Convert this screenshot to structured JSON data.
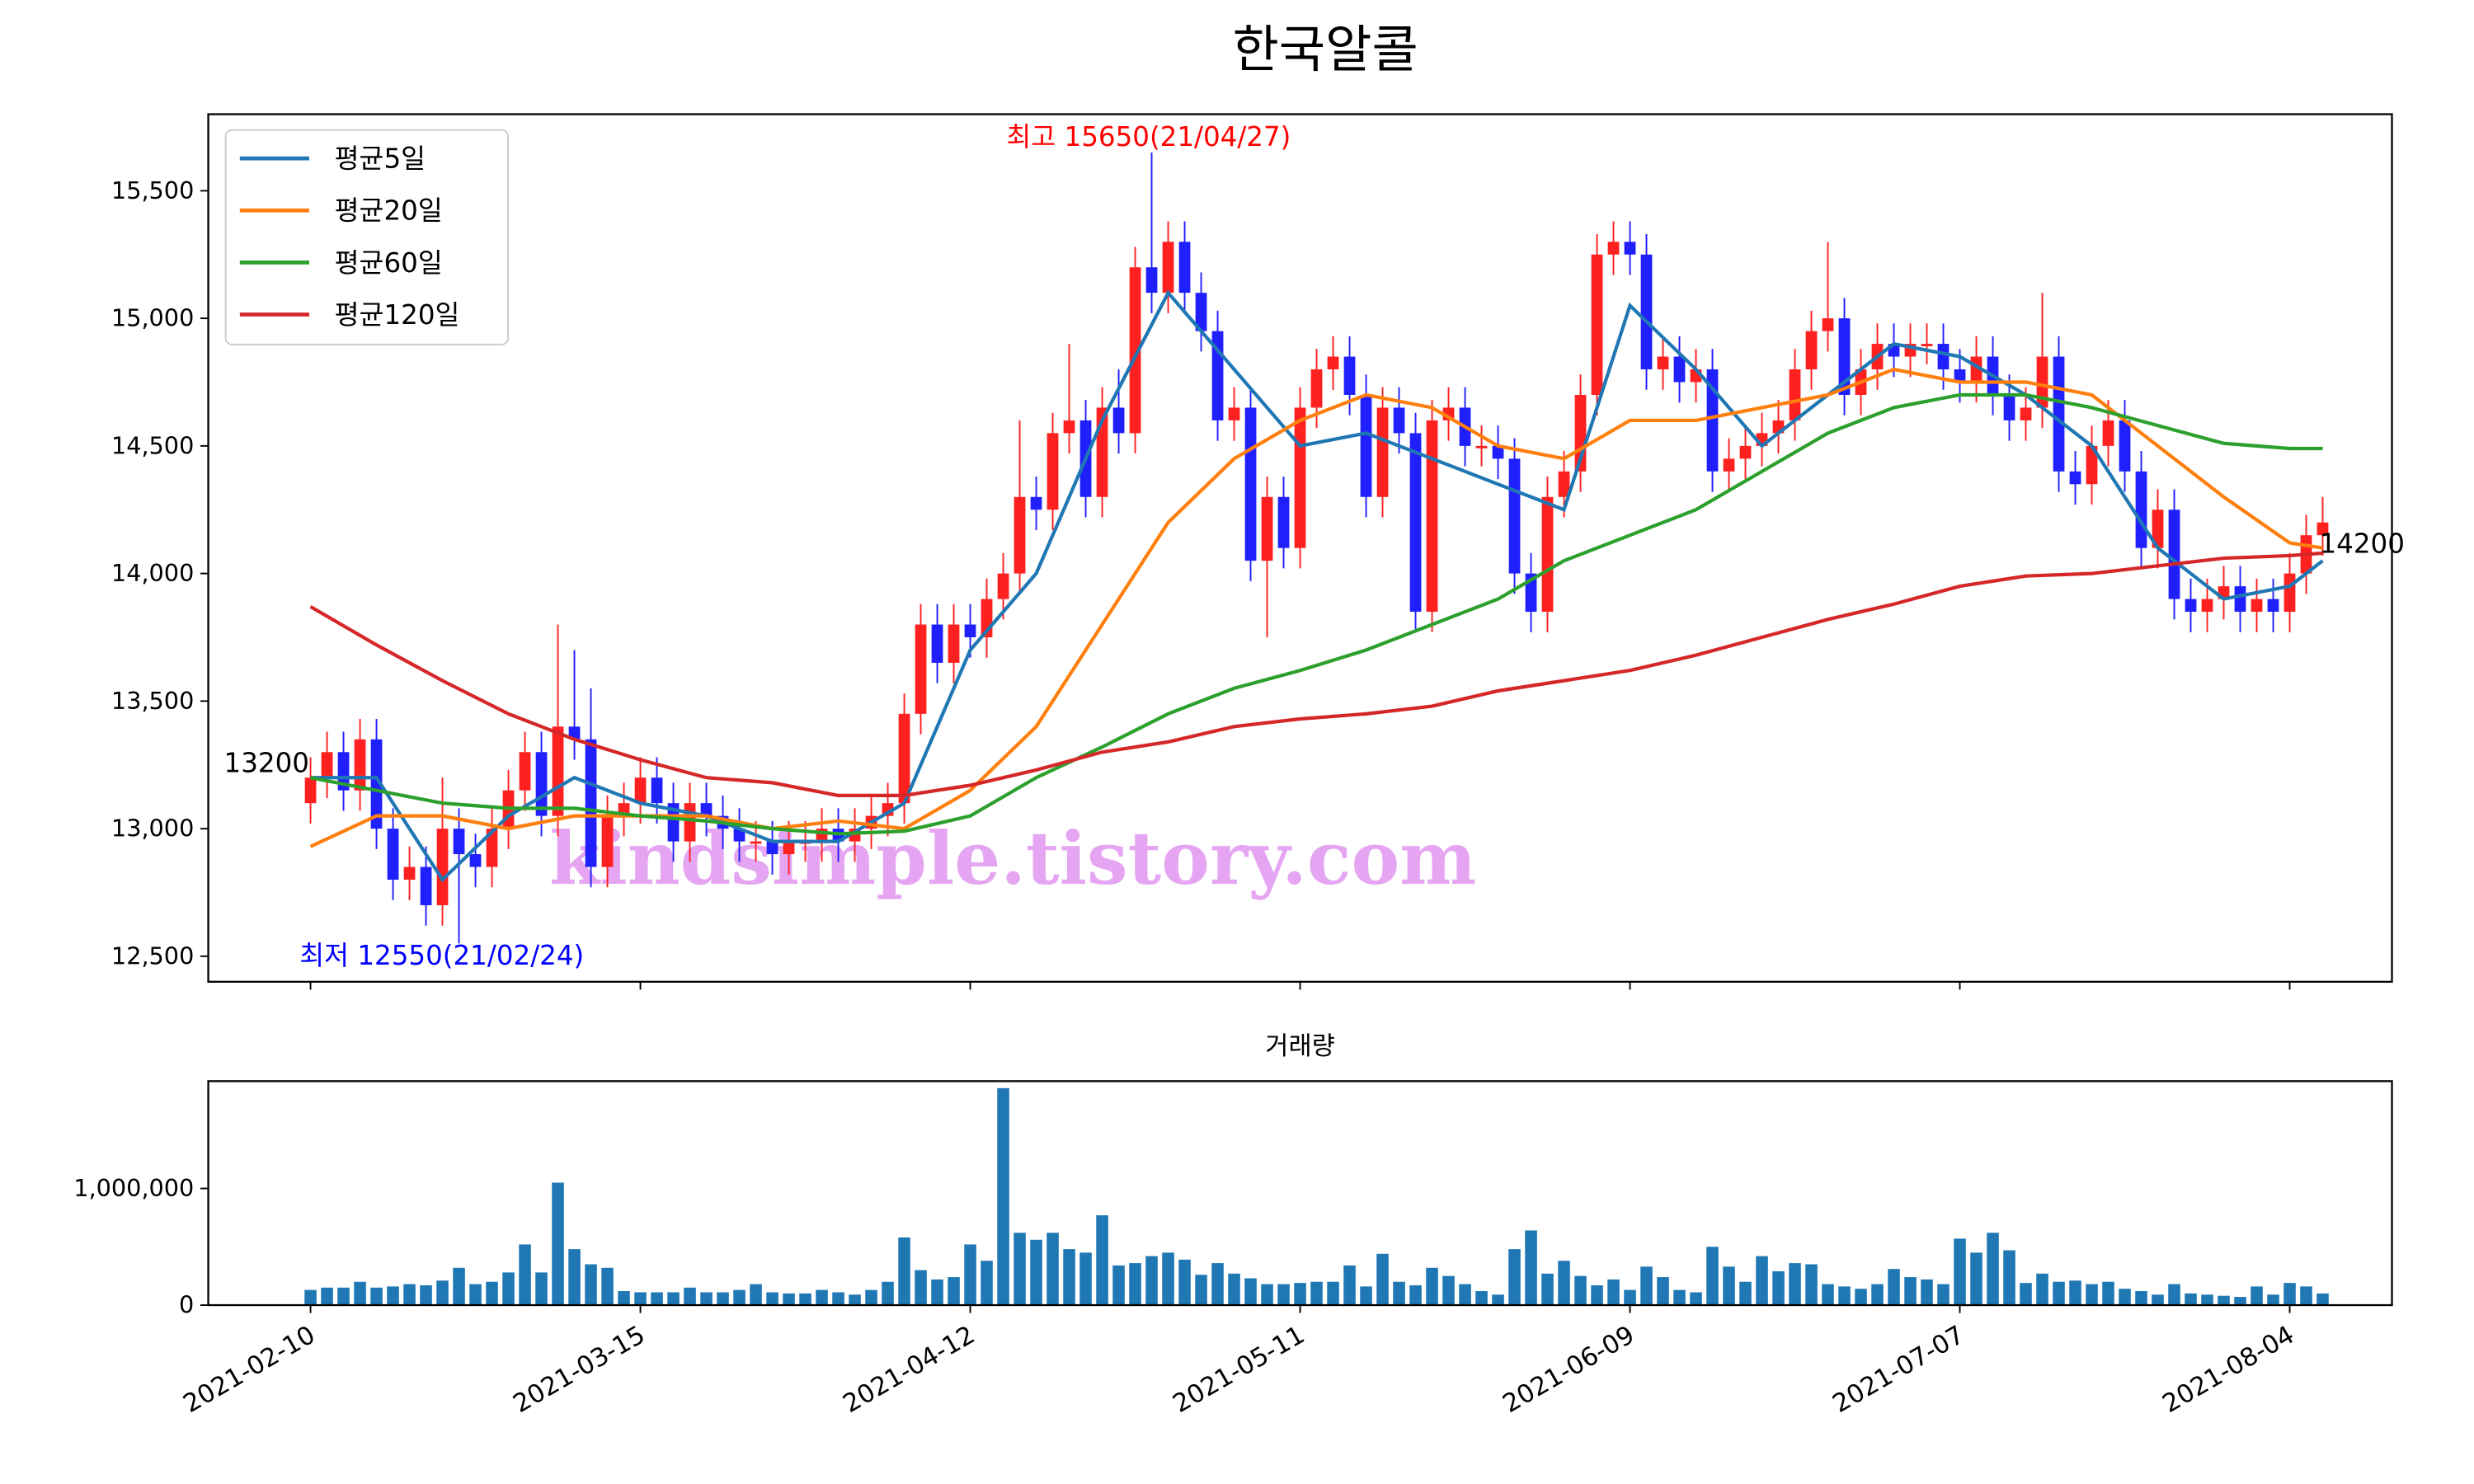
{
  "chart_data": [
    {
      "type": "candlestick",
      "title": "한국알콜",
      "xlim": [
        -6.2,
        126.2
      ],
      "ylim": [
        12400,
        15800
      ],
      "yticks": [
        {
          "value": 12500,
          "label": "12,500"
        },
        {
          "value": 13000,
          "label": "13,000"
        },
        {
          "value": 13500,
          "label": "13,500"
        },
        {
          "value": 14000,
          "label": "14,000"
        },
        {
          "value": 14500,
          "label": "14,500"
        },
        {
          "value": 15000,
          "label": "15,000"
        },
        {
          "value": 15500,
          "label": "15,500"
        }
      ],
      "up_color": "#ff2020",
      "down_color": "#2020ff",
      "legend": "upper left",
      "open": [
        13100,
        13200,
        13300,
        13150,
        13350,
        13000,
        12800,
        12850,
        12700,
        13000,
        12900,
        12850,
        13000,
        13150,
        13300,
        13050,
        13400,
        13350,
        12850,
        13050,
        13100,
        13200,
        13100,
        12950,
        13100,
        13050,
        13000,
        12950,
        12950,
        12900,
        12950,
        12950,
        13000,
        12950,
        13000,
        13050,
        13100,
        13450,
        13800,
        13650,
        13800,
        13750,
        13900,
        14000,
        14300,
        14250,
        14550,
        14600,
        14300,
        14650,
        14550,
        15200,
        15100,
        15300,
        15100,
        14950,
        14600,
        14650,
        14050,
        14300,
        14100,
        14650,
        14800,
        14850,
        14700,
        14300,
        14650,
        14550,
        13850,
        14600,
        14650,
        14500,
        14500,
        14450,
        14000,
        13850,
        14300,
        14400,
        14700,
        15250,
        15300,
        15250,
        14800,
        14850,
        14750,
        14800,
        14400,
        14450,
        14500,
        14550,
        14600,
        14800,
        14950,
        15000,
        14700,
        14800,
        14900,
        14850,
        14900,
        14900,
        14800,
        14750,
        14850,
        14700,
        14600,
        14650,
        14850,
        14400,
        14350,
        14500,
        14600,
        14400,
        14100,
        14250,
        13900,
        13850,
        13900,
        13950,
        13850,
        13900,
        13850,
        14000,
        14150
      ],
      "high": [
        13280,
        13380,
        13380,
        13430,
        13430,
        13080,
        12930,
        12930,
        13200,
        13080,
        12980,
        13080,
        13230,
        13380,
        13380,
        13800,
        13700,
        13550,
        13130,
        13180,
        13280,
        13280,
        13180,
        13180,
        13180,
        13130,
        13080,
        13030,
        13030,
        13030,
        13030,
        13080,
        13080,
        13080,
        13130,
        13180,
        13530,
        13880,
        13880,
        13880,
        13880,
        13980,
        14080,
        14600,
        14380,
        14630,
        14900,
        14680,
        14730,
        14800,
        15280,
        15650,
        15380,
        15380,
        15180,
        15030,
        14730,
        14730,
        14380,
        14380,
        14730,
        14880,
        14930,
        14930,
        14780,
        14730,
        14730,
        14630,
        14680,
        14730,
        14730,
        14580,
        14580,
        14530,
        14080,
        14380,
        14480,
        14780,
        15330,
        15380,
        15380,
        15330,
        14930,
        14930,
        14880,
        14880,
        14530,
        14580,
        14630,
        14680,
        14880,
        15030,
        15300,
        15080,
        14880,
        14980,
        14980,
        14980,
        14980,
        14980,
        14880,
        14930,
        14930,
        14780,
        14730,
        15100,
        14930,
        14480,
        14580,
        14680,
        14680,
        14480,
        14330,
        14330,
        13980,
        13980,
        14030,
        14030,
        13980,
        13980,
        14080,
        14230,
        14300
      ],
      "low": [
        13020,
        13120,
        13070,
        13070,
        12920,
        12720,
        12720,
        12620,
        12620,
        12550,
        12770,
        12770,
        12920,
        13070,
        12970,
        12970,
        13270,
        12770,
        12770,
        12970,
        13020,
        13020,
        12870,
        12870,
        12970,
        12920,
        12870,
        12870,
        12820,
        12820,
        12870,
        12870,
        12870,
        12870,
        12920,
        12970,
        13020,
        13370,
        13570,
        13570,
        13670,
        13670,
        13820,
        13920,
        14170,
        14170,
        14470,
        14220,
        14220,
        14470,
        14470,
        15020,
        15020,
        15020,
        14870,
        14520,
        14520,
        13970,
        13750,
        14020,
        14020,
        14570,
        14720,
        14620,
        14220,
        14220,
        14470,
        13770,
        13770,
        14520,
        14420,
        14420,
        14370,
        13920,
        13770,
        13770,
        14220,
        14320,
        14620,
        15170,
        15170,
        14720,
        14720,
        14670,
        14670,
        14320,
        14320,
        14370,
        14420,
        14470,
        14520,
        14720,
        14870,
        14620,
        14620,
        14720,
        14770,
        14770,
        14820,
        14720,
        14670,
        14670,
        14620,
        14520,
        14520,
        14570,
        14320,
        14270,
        14270,
        14420,
        14320,
        14020,
        14020,
        13820,
        13770,
        13770,
        13820,
        13770,
        13770,
        13770,
        13770,
        13920,
        14070
      ],
      "close": [
        13200,
        13300,
        13150,
        13350,
        13000,
        12800,
        12850,
        12700,
        13000,
        12900,
        12850,
        13000,
        13150,
        13300,
        13050,
        13400,
        13350,
        12850,
        13050,
        13100,
        13200,
        13100,
        12950,
        13100,
        13050,
        13000,
        12950,
        12950,
        12900,
        12950,
        12950,
        13000,
        12950,
        13000,
        13050,
        13100,
        13450,
        13800,
        13650,
        13800,
        13750,
        13900,
        14000,
        14300,
        14250,
        14550,
        14600,
        14300,
        14650,
        14550,
        15200,
        15100,
        15300,
        15100,
        14950,
        14600,
        14650,
        14050,
        14300,
        14100,
        14650,
        14800,
        14850,
        14700,
        14300,
        14650,
        14550,
        13850,
        14600,
        14650,
        14500,
        14500,
        14450,
        14000,
        13850,
        14300,
        14400,
        14700,
        15250,
        15300,
        15250,
        14800,
        14850,
        14750,
        14800,
        14400,
        14450,
        14500,
        14550,
        14600,
        14800,
        14950,
        15000,
        14700,
        14800,
        14900,
        14850,
        14900,
        14900,
        14800,
        14750,
        14850,
        14700,
        14600,
        14650,
        14850,
        14400,
        14350,
        14500,
        14600,
        14400,
        14100,
        14250,
        13900,
        13850,
        13900,
        13950,
        13850,
        13900,
        13850,
        14000,
        14150,
        14200
      ],
      "series": [
        {
          "name": "평균5일",
          "color": "#1f77b4",
          "x": [
            0,
            4,
            8,
            12,
            16,
            20,
            24,
            28,
            32,
            36,
            40,
            44,
            48,
            52,
            56,
            60,
            64,
            68,
            72,
            76,
            80,
            84,
            88,
            92,
            96,
            100,
            104,
            108,
            112,
            116,
            120,
            122
          ],
          "values": [
            13200,
            13200,
            12800,
            13050,
            13200,
            13100,
            13050,
            12950,
            12950,
            13100,
            13700,
            14000,
            14600,
            15100,
            14800,
            14500,
            14550,
            14450,
            14350,
            14250,
            15050,
            14800,
            14500,
            14700,
            14900,
            14850,
            14700,
            14500,
            14100,
            13900,
            13950,
            14050
          ]
        },
        {
          "name": "평균20일",
          "color": "#ff7f0e",
          "x": [
            0,
            4,
            8,
            12,
            16,
            20,
            24,
            28,
            32,
            36,
            40,
            44,
            48,
            52,
            56,
            60,
            64,
            68,
            72,
            76,
            80,
            84,
            88,
            92,
            96,
            100,
            104,
            108,
            112,
            116,
            120,
            122
          ],
          "values": [
            12930,
            13050,
            13050,
            13000,
            13050,
            13050,
            13050,
            13000,
            13030,
            13000,
            13150,
            13400,
            13800,
            14200,
            14450,
            14600,
            14700,
            14650,
            14500,
            14450,
            14600,
            14600,
            14650,
            14700,
            14800,
            14750,
            14750,
            14700,
            14500,
            14300,
            14120,
            14100
          ]
        },
        {
          "name": "평균60일",
          "color": "#2ca02c",
          "x": [
            0,
            4,
            8,
            12,
            16,
            20,
            24,
            28,
            32,
            36,
            40,
            44,
            48,
            52,
            56,
            60,
            64,
            68,
            72,
            76,
            80,
            84,
            88,
            92,
            96,
            100,
            104,
            108,
            112,
            116,
            120,
            122
          ],
          "values": [
            13200,
            13150,
            13100,
            13080,
            13080,
            13050,
            13030,
            13000,
            12980,
            12990,
            13050,
            13200,
            13320,
            13450,
            13550,
            13620,
            13700,
            13800,
            13900,
            14050,
            14150,
            14250,
            14400,
            14550,
            14650,
            14700,
            14700,
            14650,
            14580,
            14510,
            14490,
            14490
          ]
        },
        {
          "name": "평균120일",
          "color": "#d62728",
          "x": [
            0,
            4,
            8,
            12,
            16,
            20,
            24,
            28,
            32,
            36,
            40,
            44,
            48,
            52,
            56,
            60,
            64,
            68,
            72,
            76,
            80,
            84,
            88,
            92,
            96,
            100,
            104,
            108,
            112,
            116,
            120,
            122
          ],
          "values": [
            13870,
            13720,
            13580,
            13450,
            13350,
            13270,
            13200,
            13180,
            13130,
            13130,
            13170,
            13230,
            13300,
            13340,
            13400,
            13430,
            13450,
            13480,
            13540,
            13580,
            13620,
            13680,
            13750,
            13820,
            13880,
            13950,
            13990,
            14000,
            14030,
            14060,
            14070,
            14080
          ]
        }
      ],
      "annotations": [
        {
          "text": "최고 15650(21/04/27)",
          "color": "#ff0000"
        },
        {
          "text": "최저 12550(21/02/24)",
          "color": "#0000ff"
        },
        {
          "text": "13200",
          "color": "#000000"
        },
        {
          "text": "14200",
          "color": "#000000"
        }
      ],
      "watermark": "kindsimple.tistory.com"
    },
    {
      "type": "bar",
      "title": "거래량",
      "color": "#1f77b4",
      "xlim": [
        -6.2,
        126.2
      ],
      "ylim": [
        0,
        1920000
      ],
      "yticks": [
        0,
        {
          "value": 1000000,
          "label": "1,000,000"
        }
      ],
      "xticks": [
        {
          "value": 0,
          "label": "2021-02-10"
        },
        {
          "value": 20,
          "label": "2021-03-15"
        },
        {
          "value": 40,
          "label": "2021-04-12"
        },
        {
          "value": 60,
          "label": "2021-05-11"
        },
        {
          "value": 80,
          "label": "2021-06-09"
        },
        {
          "value": 100,
          "label": "2021-07-07"
        },
        {
          "value": 120,
          "label": "2021-08-04"
        }
      ],
      "values": [
        130000,
        150000,
        150000,
        200000,
        150000,
        160000,
        180000,
        170000,
        210000,
        320000,
        180000,
        200000,
        280000,
        520000,
        280000,
        1050000,
        480000,
        350000,
        320000,
        120000,
        110000,
        110000,
        110000,
        150000,
        110000,
        110000,
        130000,
        180000,
        110000,
        100000,
        100000,
        130000,
        110000,
        90000,
        130000,
        200000,
        580000,
        300000,
        220000,
        240000,
        520000,
        380000,
        1860000,
        620000,
        560000,
        620000,
        480000,
        450000,
        770000,
        340000,
        360000,
        420000,
        450000,
        390000,
        260000,
        360000,
        270000,
        230000,
        180000,
        180000,
        190000,
        200000,
        200000,
        340000,
        160000,
        440000,
        200000,
        170000,
        320000,
        250000,
        180000,
        120000,
        90000,
        480000,
        640000,
        270000,
        380000,
        250000,
        170000,
        220000,
        130000,
        330000,
        240000,
        130000,
        110000,
        500000,
        330000,
        200000,
        420000,
        290000,
        360000,
        350000,
        180000,
        160000,
        140000,
        180000,
        310000,
        240000,
        220000,
        180000,
        570000,
        450000,
        620000,
        470000,
        190000,
        270000,
        200000,
        210000,
        180000,
        200000,
        140000,
        120000,
        90000,
        180000,
        100000,
        90000,
        80000,
        70000,
        160000,
        90000,
        190000,
        160000,
        100000
      ]
    }
  ]
}
